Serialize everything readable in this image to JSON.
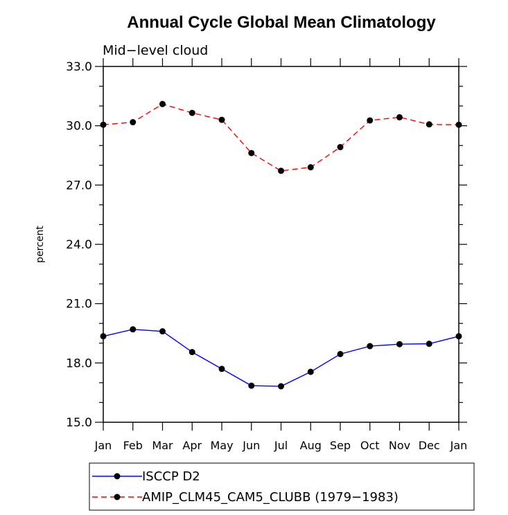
{
  "chart_data": {
    "type": "line",
    "title": "Annual Cycle Global Mean Climatology",
    "subtitle": "Mid−level cloud",
    "ylabel": "percent",
    "xlabel": "",
    "categories": [
      "Jan",
      "Feb",
      "Mar",
      "Apr",
      "May",
      "Jun",
      "Jul",
      "Aug",
      "Sep",
      "Oct",
      "Nov",
      "Dec",
      "Jan"
    ],
    "ylim": [
      15.0,
      33.0
    ],
    "yticks": [
      "15.0",
      "18.0",
      "21.0",
      "24.0",
      "27.0",
      "30.0",
      "33.0"
    ],
    "grid": false,
    "legend_position": "bottom",
    "series": [
      {
        "name": "ISCCP D2",
        "color": "#0000ff",
        "dash": "solid",
        "marker": "circle",
        "values": [
          19.35,
          19.7,
          19.6,
          18.55,
          17.7,
          16.85,
          16.82,
          17.55,
          18.45,
          18.85,
          18.95,
          18.97,
          19.35
        ]
      },
      {
        "name": "AMIP_CLM45_CAM5_CLUBB (1979−1983)",
        "color": "#ff0000",
        "dash": "dashed",
        "marker": "circle",
        "values": [
          30.05,
          30.18,
          31.1,
          30.65,
          30.3,
          28.62,
          27.72,
          27.9,
          28.92,
          30.27,
          30.43,
          30.07,
          30.05
        ]
      }
    ]
  }
}
